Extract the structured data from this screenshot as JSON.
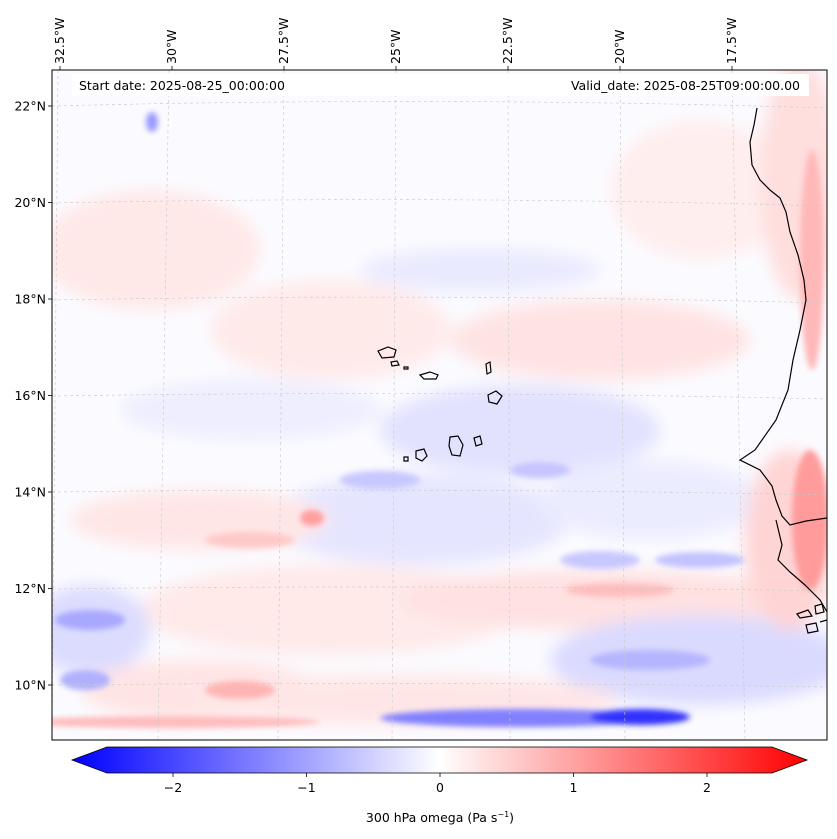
{
  "map": {
    "start_date": "Start date: 2025-08-25_00:00:00",
    "valid_date": "Valid_date: 2025-08-25T09:00:00.00",
    "lon_labels": [
      {
        "lon": -32.5,
        "text": "32.5°W"
      },
      {
        "lon": -30.0,
        "text": "30°W"
      },
      {
        "lon": -27.5,
        "text": "27.5°W"
      },
      {
        "lon": -25.0,
        "text": "25°W"
      },
      {
        "lon": -22.5,
        "text": "22.5°W"
      },
      {
        "lon": -20.0,
        "text": "20°W"
      },
      {
        "lon": -17.5,
        "text": "17.5°W"
      }
    ],
    "lat_labels": [
      {
        "lat": 22,
        "text": "22°N"
      },
      {
        "lat": 20,
        "text": "20°N"
      },
      {
        "lat": 18,
        "text": "18°N"
      },
      {
        "lat": 16,
        "text": "16°N"
      },
      {
        "lat": 14,
        "text": "14°N"
      },
      {
        "lat": 12,
        "text": "12°N"
      },
      {
        "lat": 10,
        "text": "10°N"
      }
    ],
    "extent": {
      "lon_min": -32.7,
      "lon_max": -15.2,
      "lat_min": 8.9,
      "lat_max": 22.8
    },
    "field": "300 hPa omega"
  },
  "colorbar": {
    "label": "300 hPa omega (Pa s",
    "label_sup": "−1",
    "label_end": ")",
    "vmin": -2.75,
    "vmax": 2.75,
    "colormap": "bwr",
    "ticks": [
      {
        "value": -2,
        "text": "−2"
      },
      {
        "value": -1,
        "text": "−1"
      },
      {
        "value": 0,
        "text": "0"
      },
      {
        "value": 1,
        "text": "1"
      },
      {
        "value": 2,
        "text": "2"
      }
    ]
  },
  "colors": {
    "negative": "#0000ff",
    "neutral": "#ffffff",
    "positive": "#ff0000",
    "coastline": "#000000",
    "gridline": "#bbbbbb"
  }
}
